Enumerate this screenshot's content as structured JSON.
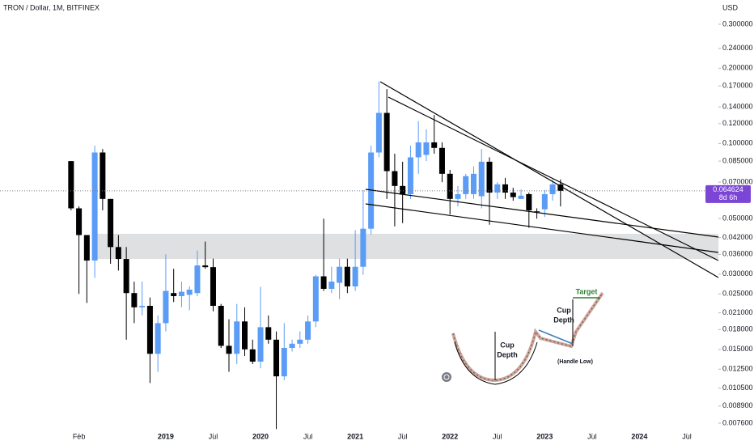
{
  "chart_data": {
    "type": "candlestick",
    "title": "TRON / Dollar, 1M, BITFINEX",
    "y_axis_label": "USD",
    "log_scale": true,
    "up_color": "#5b9cf6",
    "down_color": "#000000",
    "x": [
      "2018-01",
      "2018-02",
      "2018-03",
      "2018-04",
      "2018-05",
      "2018-06",
      "2018-07",
      "2018-08",
      "2018-09",
      "2018-10",
      "2018-11",
      "2018-12",
      "2019-01",
      "2019-02",
      "2019-03",
      "2019-04",
      "2019-05",
      "2019-06",
      "2019-07",
      "2019-08",
      "2019-09",
      "2019-10",
      "2019-11",
      "2019-12",
      "2020-01",
      "2020-02",
      "2020-03",
      "2020-04",
      "2020-05",
      "2020-06",
      "2020-07",
      "2020-08",
      "2020-09",
      "2020-10",
      "2020-11",
      "2020-12",
      "2021-01",
      "2021-02",
      "2021-03",
      "2021-04",
      "2021-05",
      "2021-06",
      "2021-07",
      "2021-08",
      "2021-09",
      "2021-10",
      "2021-11",
      "2021-12",
      "2022-01",
      "2022-02",
      "2022-03",
      "2022-04",
      "2022-05",
      "2022-06",
      "2022-07",
      "2022-08",
      "2022-09",
      "2022-10",
      "2022-11",
      "2022-12",
      "2023-01",
      "2023-02",
      "2023-03"
    ],
    "open": [
      0.085,
      0.055,
      0.043,
      0.034,
      0.092,
      0.06,
      0.0385,
      0.0345,
      0.0252,
      0.0221,
      0.0224,
      0.0144,
      0.0191,
      0.0252,
      0.0245,
      0.0248,
      0.0252,
      0.0325,
      0.032,
      0.0224,
      0.0155,
      0.0144,
      0.0194,
      0.015,
      0.0134,
      0.0184,
      0.0164,
      0.0117,
      0.0152,
      0.0158,
      0.0164,
      0.0194,
      0.0294,
      0.0262,
      0.0277,
      0.0321,
      0.0268,
      0.0321,
      0.0456,
      0.092,
      0.1325,
      0.0775,
      0.0676,
      0.0627,
      0.088,
      0.09,
      0.101,
      0.096,
      0.0756,
      0.06,
      0.0627,
      0.0627,
      0.0615,
      0.0845,
      0.0636,
      0.0686,
      0.0636,
      0.06,
      0.0627,
      0.0535,
      0.0545,
      0.0627,
      0.0686
    ],
    "high": [
      0.085,
      0.056,
      0.043,
      0.098,
      0.095,
      0.06,
      0.043,
      0.0385,
      0.028,
      0.028,
      0.0242,
      0.0205,
      0.036,
      0.0315,
      0.028,
      0.0268,
      0.0373,
      0.0405,
      0.0346,
      0.0228,
      0.0198,
      0.0228,
      0.0221,
      0.0164,
      0.0267,
      0.0205,
      0.0177,
      0.0191,
      0.0164,
      0.0177,
      0.0205,
      0.0298,
      0.05,
      0.0321,
      0.0346,
      0.0346,
      0.045,
      0.065,
      0.098,
      0.177,
      0.165,
      0.091,
      0.0845,
      0.098,
      0.123,
      0.114,
      0.13,
      0.101,
      0.0784,
      0.0676,
      0.0756,
      0.081,
      0.095,
      0.088,
      0.07,
      0.0728,
      0.0665,
      0.0655,
      0.0636,
      0.055,
      0.065,
      0.0718,
      0.0718
    ],
    "low": [
      0.054,
      0.025,
      0.023,
      0.029,
      0.054,
      0.033,
      0.031,
      0.0164,
      0.0191,
      0.0205,
      0.011,
      0.0122,
      0.0177,
      0.0232,
      0.0221,
      0.0215,
      0.0245,
      0.0315,
      0.0213,
      0.0152,
      0.0122,
      0.0131,
      0.0141,
      0.0131,
      0.0126,
      0.0158,
      0.0072,
      0.0113,
      0.0147,
      0.0152,
      0.0158,
      0.0184,
      0.0257,
      0.0252,
      0.0238,
      0.0252,
      0.0257,
      0.0298,
      0.0432,
      0.088,
      0.06,
      0.0466,
      0.048,
      0.06,
      0.0756,
      0.085,
      0.091,
      0.07,
      0.052,
      0.056,
      0.06,
      0.06,
      0.055,
      0.0473,
      0.06,
      0.06,
      0.059,
      0.06,
      0.046,
      0.05,
      0.0508,
      0.059,
      0.056
    ],
    "close": [
      0.055,
      0.043,
      0.034,
      0.092,
      0.06,
      0.0385,
      0.0345,
      0.0252,
      0.0221,
      0.0224,
      0.0144,
      0.0191,
      0.0257,
      0.0245,
      0.0255,
      0.026,
      0.0325,
      0.032,
      0.0224,
      0.0155,
      0.0144,
      0.0194,
      0.015,
      0.0134,
      0.0184,
      0.0164,
      0.0117,
      0.0152,
      0.0158,
      0.0164,
      0.0194,
      0.0294,
      0.0262,
      0.028,
      0.0321,
      0.0268,
      0.0321,
      0.0456,
      0.092,
      0.1325,
      0.0775,
      0.0676,
      0.0627,
      0.088,
      0.101,
      0.101,
      0.096,
      0.0756,
      0.06,
      0.0627,
      0.074,
      0.0756,
      0.0845,
      0.0636,
      0.0686,
      0.0636,
      0.061,
      0.0618,
      0.054,
      0.0532,
      0.0627,
      0.0686,
      0.064624
    ],
    "xlim": [
      "2017-04",
      "2024-11"
    ],
    "xticks": [
      {
        "value": "2018-02",
        "label": "Feb"
      },
      {
        "value": "2019-01",
        "label": "2019"
      },
      {
        "value": "2019-07",
        "label": "Jul"
      },
      {
        "value": "2020-01",
        "label": "2020"
      },
      {
        "value": "2020-07",
        "label": "Jul"
      },
      {
        "value": "2021-01",
        "label": "2021"
      },
      {
        "value": "2021-07",
        "label": "Jul"
      },
      {
        "value": "2022-01",
        "label": "2022"
      },
      {
        "value": "2022-07",
        "label": "Jul"
      },
      {
        "value": "2023-01",
        "label": "2023"
      },
      {
        "value": "2023-07",
        "label": "Jul"
      },
      {
        "value": "2024-01",
        "label": "2024"
      },
      {
        "value": "2024-07",
        "label": "Jul"
      }
    ],
    "ylim": [
      0.00695,
      0.375
    ],
    "yticks": [
      {
        "value": 0.3,
        "label": "0.300000"
      },
      {
        "value": 0.24,
        "label": "0.240000"
      },
      {
        "value": 0.2,
        "label": "0.200000"
      },
      {
        "value": 0.17,
        "label": "0.170000"
      },
      {
        "value": 0.14,
        "label": "0.140000"
      },
      {
        "value": 0.12,
        "label": "0.120000"
      },
      {
        "value": 0.1,
        "label": "0.100000"
      },
      {
        "value": 0.085,
        "label": "0.085000"
      },
      {
        "value": 0.07,
        "label": "0.070000"
      },
      {
        "value": 0.05,
        "label": "0.050000"
      },
      {
        "value": 0.042,
        "label": "0.042000"
      },
      {
        "value": 0.036,
        "label": "0.036000"
      },
      {
        "value": 0.03,
        "label": "0.030000"
      },
      {
        "value": 0.025,
        "label": "0.025000"
      },
      {
        "value": 0.021,
        "label": "0.021000"
      },
      {
        "value": 0.018,
        "label": "0.018000"
      },
      {
        "value": 0.015,
        "label": "0.015000"
      },
      {
        "value": 0.0125,
        "label": "0.012500"
      },
      {
        "value": 0.0105,
        "label": "0.010500"
      },
      {
        "value": 0.0089,
        "label": "0.008900"
      },
      {
        "value": 0.0076,
        "label": "0.007600"
      }
    ],
    "highlight_zone": [
      0.0345,
      0.0435
    ],
    "last_price": {
      "value": 0.064624,
      "label": "0.064624"
    },
    "countdown": "8d 6h",
    "annotations": [
      "Cup",
      "Depth",
      "Cup",
      "Depth",
      "Target",
      "(Handle Low)"
    ]
  }
}
